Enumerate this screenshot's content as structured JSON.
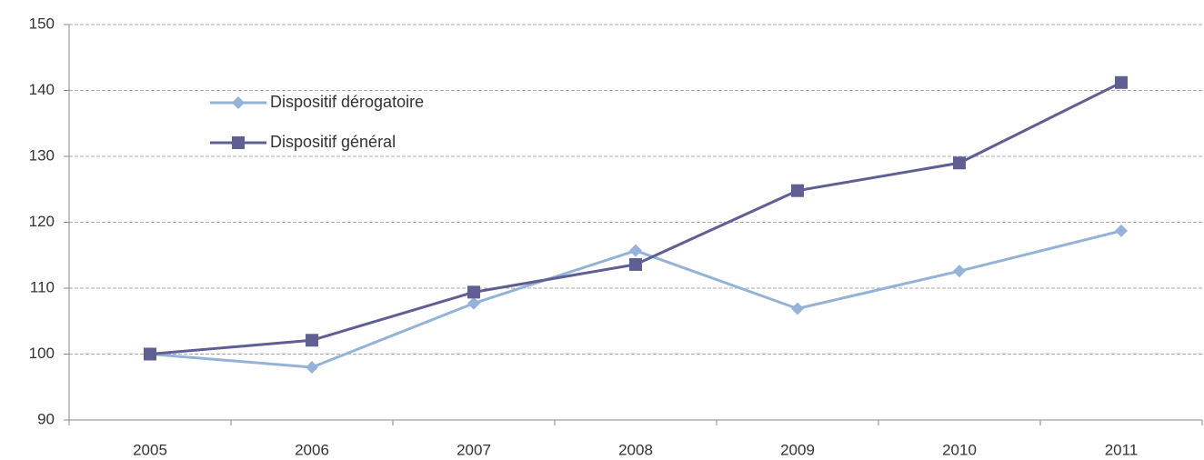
{
  "chart_data": {
    "type": "line",
    "categories": [
      "2005",
      "2006",
      "2007",
      "2008",
      "2009",
      "2010",
      "2011"
    ],
    "series": [
      {
        "name": "Dispositif dérogatoire",
        "color": "#95b3d7",
        "marker": "diamond",
        "values": [
          100,
          98,
          107.7,
          115.7,
          106.9,
          112.6,
          118.7
        ]
      },
      {
        "name": "Dispositif général",
        "color": "#5f5f94",
        "marker": "square",
        "values": [
          100,
          102.1,
          109.4,
          113.6,
          124.8,
          129,
          141.2
        ]
      }
    ],
    "ylim": [
      90,
      150
    ],
    "yticks": [
      90,
      100,
      110,
      120,
      130,
      140,
      150
    ],
    "grid": true,
    "legend": "top-left"
  }
}
